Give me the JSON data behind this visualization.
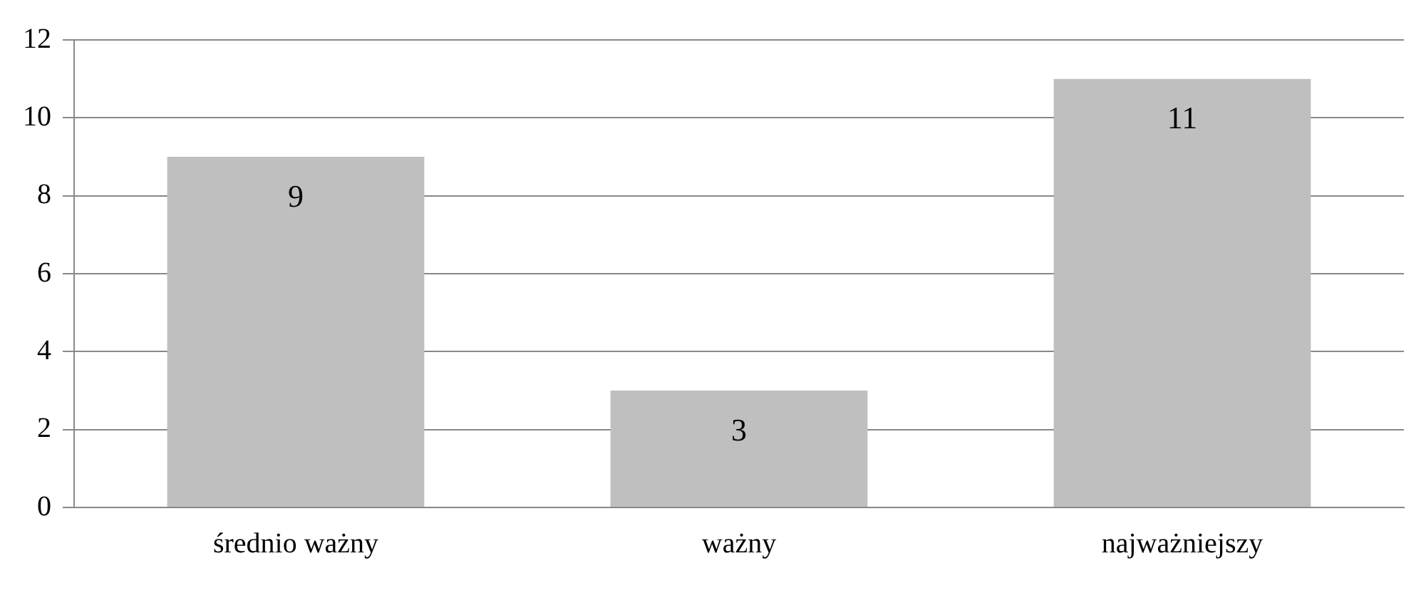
{
  "chart_data": {
    "type": "bar",
    "categories": [
      "średnio ważny",
      "ważny",
      "najważniejszy"
    ],
    "values": [
      9,
      3,
      11
    ],
    "color": "#bfbfbf",
    "ylim": [
      0,
      12
    ],
    "yticks": [
      0,
      2,
      4,
      6,
      8,
      10,
      12
    ],
    "grid": "y",
    "data_labels": true,
    "legend": false
  }
}
